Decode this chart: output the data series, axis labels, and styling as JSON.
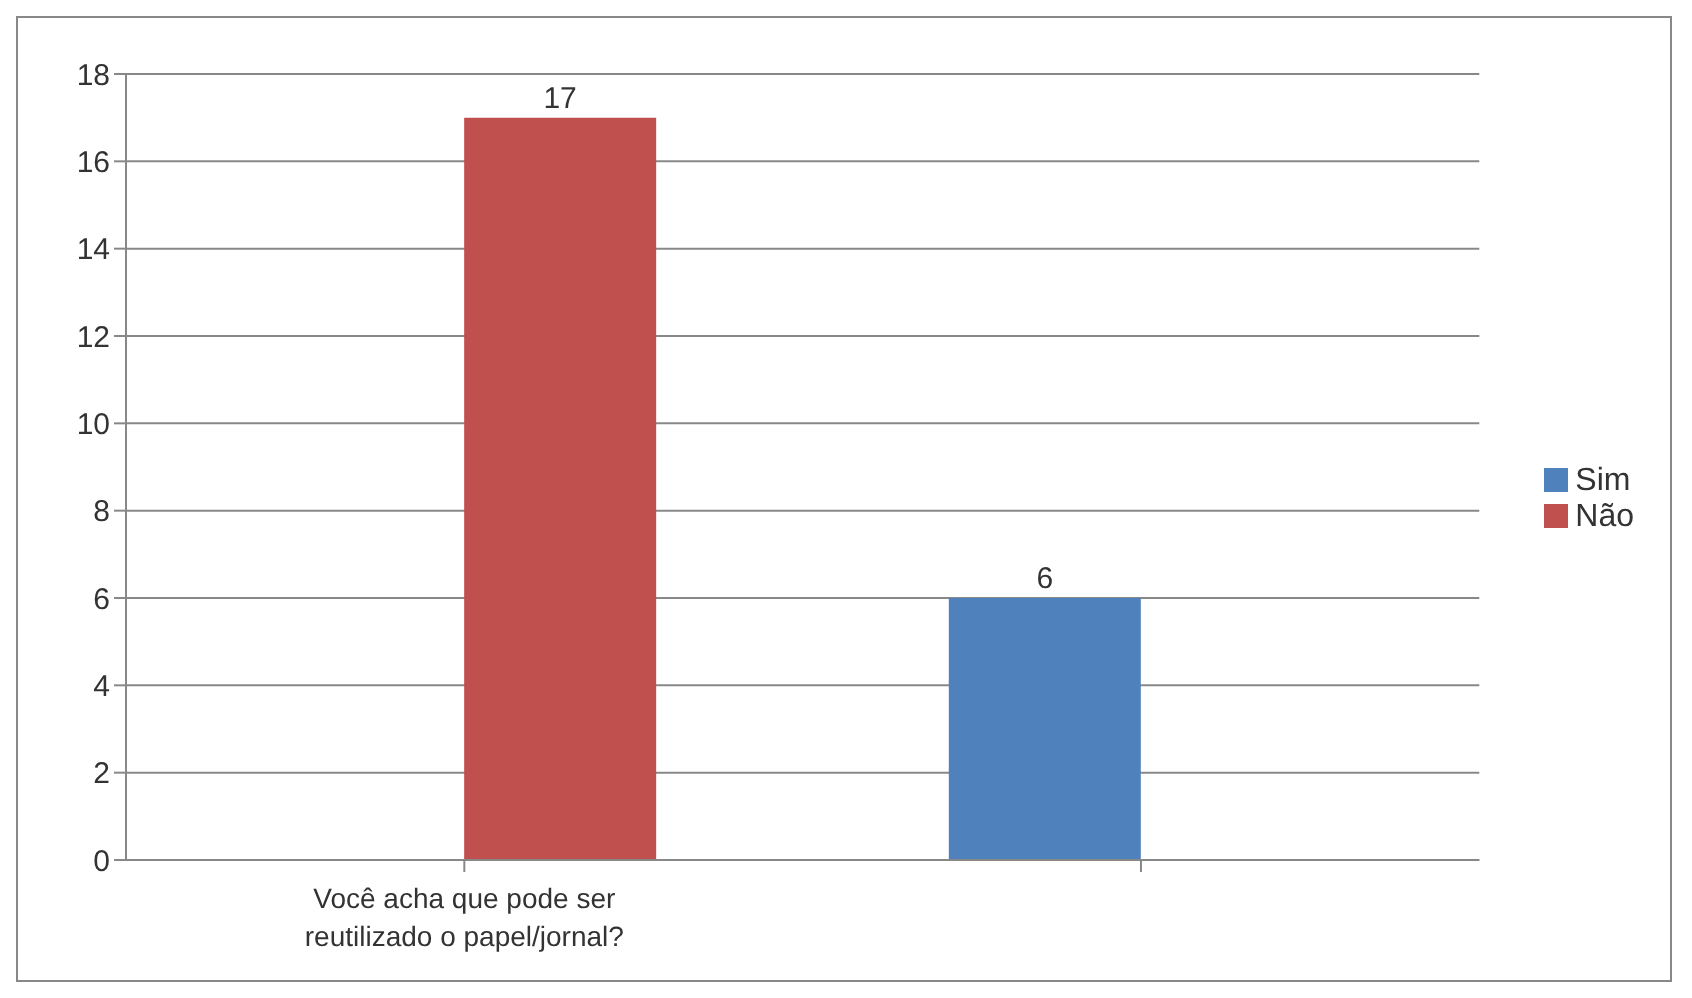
{
  "chart_data": {
    "type": "bar",
    "categories": [
      "Você acha que pode ser reutilizado o papel/jornal?",
      null
    ],
    "series": [
      {
        "name": "Sim",
        "color": "#4f81bd",
        "values": [
          null,
          6
        ]
      },
      {
        "name": "Não",
        "color": "#c0504d",
        "values": [
          17,
          null
        ]
      }
    ],
    "ylim": [
      0,
      18
    ],
    "yticks": [
      0,
      2,
      4,
      6,
      8,
      10,
      12,
      14,
      16,
      18
    ],
    "grid": "y",
    "legend": "right",
    "data_labels": true
  }
}
